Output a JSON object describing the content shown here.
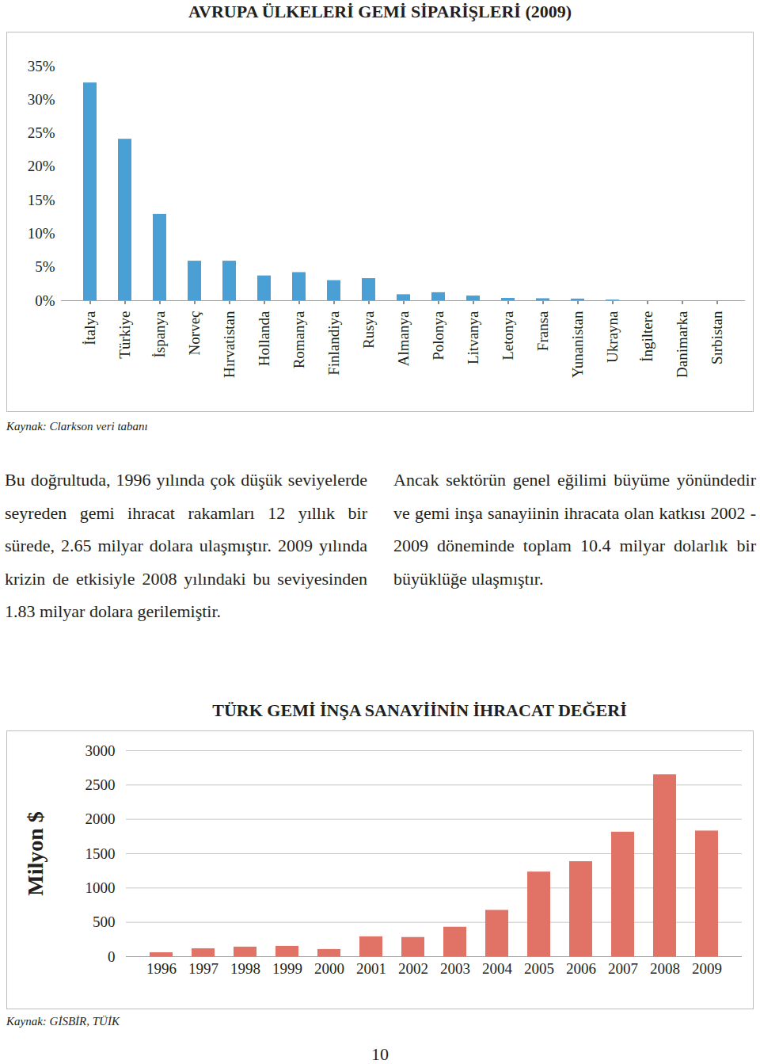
{
  "chart_data": [
    {
      "type": "bar",
      "title": "AVRUPA ÜLKELERİ GEMİ SİPARİŞLERİ (2009)",
      "categories": [
        "İtalya",
        "Türkiye",
        "İspanya",
        "Norveç",
        "Hırvatistan",
        "Hollanda",
        "Romanya",
        "Finlandiya",
        "Rusya",
        "Almanya",
        "Polonya",
        "Litvanya",
        "Letonya",
        "Fransa",
        "Yunanistan",
        "Ukrayna",
        "İngiltere",
        "Danimarka",
        "Sırbistan"
      ],
      "values": [
        32.5,
        24.1,
        12.9,
        5.9,
        5.9,
        3.7,
        4.2,
        3.0,
        3.3,
        0.9,
        1.2,
        0.7,
        0.35,
        0.3,
        0.25,
        0.1,
        0,
        0,
        0
      ],
      "color": "#4a9fd4",
      "ylim": [
        0,
        35
      ],
      "yticks": [
        {
          "value": 0,
          "label": "0%"
        },
        {
          "value": 5,
          "label": "5%"
        },
        {
          "value": 10,
          "label": "10%"
        },
        {
          "value": 15,
          "label": "15%"
        },
        {
          "value": 20,
          "label": "20%"
        },
        {
          "value": 25,
          "label": "25%"
        },
        {
          "value": 30,
          "label": "30%"
        },
        {
          "value": 35,
          "label": "35%"
        }
      ],
      "grid": false,
      "source": "Kaynak: Clarkson veri tabanı"
    },
    {
      "type": "bar",
      "title": "TÜRK GEMİ İNŞA SANAYİİNİN İHRACAT DEĞERİ",
      "y_label": "Milyon $",
      "categories": [
        "1996",
        "1997",
        "1998",
        "1999",
        "2000",
        "2001",
        "2002",
        "2003",
        "2004",
        "2005",
        "2006",
        "2007",
        "2008",
        "2009"
      ],
      "values": [
        58,
        116,
        140,
        151,
        105,
        290,
        280,
        430,
        675,
        1233,
        1384,
        1814,
        2650,
        1830
      ],
      "color": "#e07266",
      "ylim": [
        0,
        3000
      ],
      "yticks": [
        0,
        500,
        1000,
        1500,
        2000,
        2500,
        3000
      ],
      "grid": true,
      "source": "Kaynak: GİSBİR,  TÜİK"
    }
  ],
  "text": {
    "paragraph_left": "Bu doğrultuda, 1996 yılında çok düşük seviyelerde seyreden gemi ihracat rakamları 12 yıllık bir sürede, 2.65 milyar dolara ulaşmıştır. 2009 yılında krizin de etkisiyle 2008 yılındaki bu seviyesinden 1.83 milyar dolara gerilemiştir.",
    "paragraph_right": "Ancak sektörün genel eğilimi büyüme yönündedir ve gemi inşa sanayiinin ihracata olan katkısı 2002 - 2009 döneminde toplam 10.4 milyar dolarlık bir büyüklüğe ulaşmıştır.",
    "page_number": "10"
  }
}
